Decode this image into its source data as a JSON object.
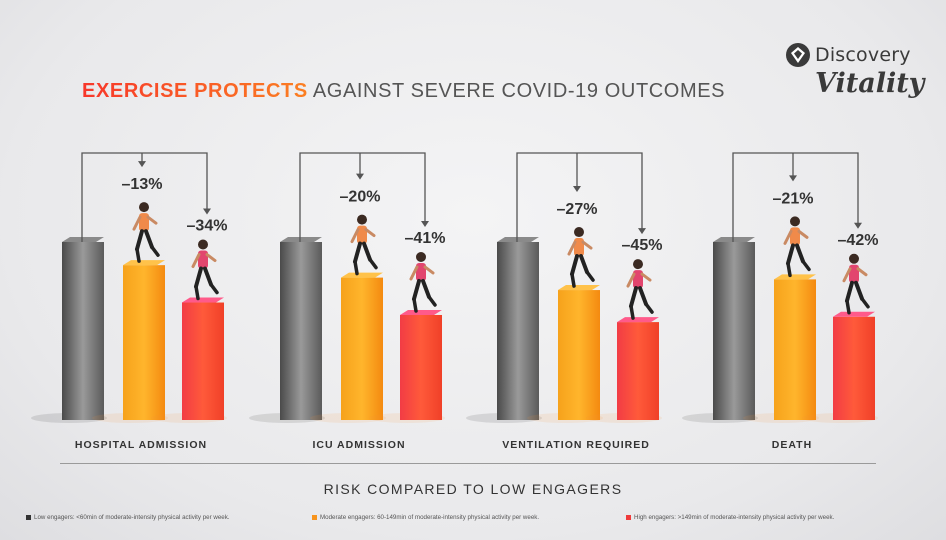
{
  "logo": {
    "brand": "Discovery",
    "sub": "Vitality",
    "icon": "discovery-diamond-icon"
  },
  "title": {
    "accent": "EXERCISE PROTECTS",
    "rest": "AGAINST SEVERE COVID-19 OUTCOMES"
  },
  "subtitle": "RISK COMPARED TO LOW ENGAGERS",
  "colors": {
    "low": "#6b6b6b",
    "moderate": "#fb9a14",
    "high": "#f53a3a",
    "title_accent": "#f7452b"
  },
  "legend": [
    {
      "label": "Low engagers: <60min of moderate-intensity physical activity per week.",
      "color": "#333333"
    },
    {
      "label": "Moderate engagers: 60-149min of moderate-intensity physical activity per week.",
      "color": "#f7941d"
    },
    {
      "label": "High engagers: >149min of moderate-intensity physical activity per week.",
      "color": "#ef3b3b"
    }
  ],
  "chart_data": {
    "type": "bar",
    "title": "EXERCISE PROTECTS AGAINST SEVERE COVID-19 OUTCOMES",
    "xlabel": "RISK COMPARED TO LOW ENGAGERS",
    "categories": [
      "HOSPITAL ADMISSION",
      "ICU ADMISSION",
      "VENTILATION REQUIRED",
      "DEATH"
    ],
    "series": [
      {
        "name": "Low engagers",
        "values": [
          0,
          0,
          0,
          0
        ]
      },
      {
        "name": "Moderate engagers",
        "values": [
          -13,
          -20,
          -27,
          -21
        ],
        "labels": [
          "–13%",
          "–20%",
          "–27%",
          "–21%"
        ]
      },
      {
        "name": "High engagers",
        "values": [
          -34,
          -41,
          -45,
          -42
        ],
        "labels": [
          "–34%",
          "–41%",
          "–45%",
          "–42%"
        ]
      }
    ],
    "unit": "%",
    "legend_position": "bottom",
    "grid": false
  }
}
